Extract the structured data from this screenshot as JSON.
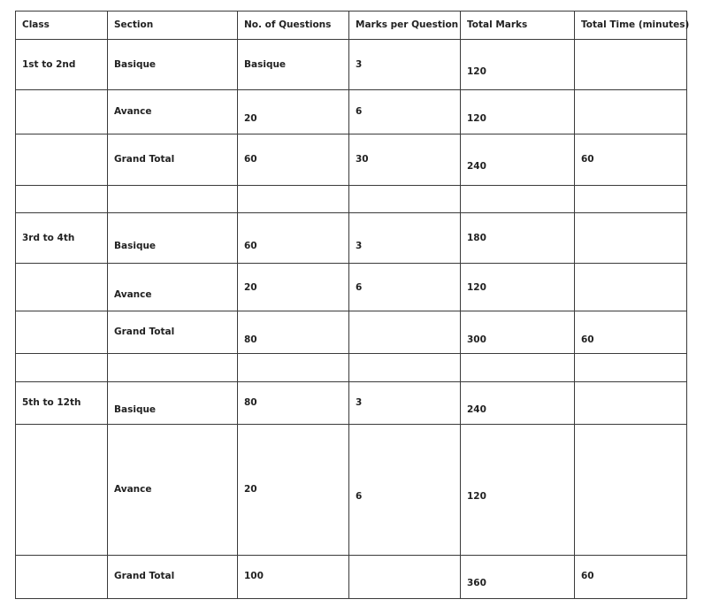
{
  "table": {
    "headers": [
      "Class",
      "Section",
      "No. of Questions",
      "Marks per Question",
      "Total Marks",
      "Total Time (minutes)"
    ],
    "rows": [
      [
        "1st to 2nd",
        "Basique",
        "Basique",
        "3",
        "120",
        ""
      ],
      [
        "",
        "Avance",
        "20",
        "6",
        "120",
        ""
      ],
      [
        "",
        "Grand Total",
        "60",
        "30",
        "240",
        "60"
      ],
      [
        "",
        "",
        "",
        "",
        "",
        ""
      ],
      [
        "3rd to 4th",
        "Basique",
        "60",
        "3",
        "180",
        ""
      ],
      [
        "",
        "Avance",
        "20",
        "6",
        "120",
        ""
      ],
      [
        "",
        "Grand Total",
        "80",
        "",
        "300",
        "60"
      ],
      [
        "",
        "",
        "",
        "",
        "",
        ""
      ],
      [
        "5th to 12th",
        "Basique",
        "80",
        "3",
        "240",
        ""
      ],
      [
        "",
        "Avance",
        "20",
        "6",
        "120",
        ""
      ],
      [
        "",
        "Grand Total",
        "100",
        "",
        "360",
        "60"
      ]
    ]
  }
}
